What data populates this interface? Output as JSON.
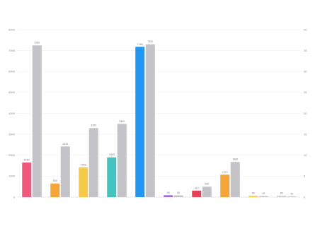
{
  "chart_data": {
    "type": "bar",
    "title": "",
    "legend_position": "top",
    "grid": true,
    "ylim": [
      0,
      8000
    ],
    "yticks": [
      0,
      1000,
      2000,
      3000,
      4000,
      5000,
      6000,
      7000,
      8000
    ],
    "y2lim": [
      0,
      40
    ],
    "y2ticks": [
      0,
      5,
      10,
      15,
      20,
      25,
      30,
      35,
      40
    ],
    "categories": [
      "",
      "",
      "",
      "",
      "",
      "",
      "",
      "",
      "",
      ""
    ],
    "category_colors": [
      "#f0587c",
      "#f5a43a",
      "#f7c948",
      "#47c2bf",
      "#2196f3",
      "#9c6ade",
      "#e83f5b",
      "#f5a43a",
      "#f7c948",
      "#cccccc"
    ],
    "series": [
      {
        "name": "",
        "values": [
          1650,
          650,
          1420,
          1900,
          7180,
          90,
          310,
          1070,
          60,
          60
        ]
      },
      {
        "name": "",
        "color": "#c4c4c8",
        "values": [
          7250,
          2420,
          3300,
          3500,
          7300,
          80,
          500,
          1680,
          45,
          30
        ]
      }
    ],
    "tooltip": {
      "title": "",
      "lines": [
        "",
        ""
      ]
    }
  }
}
